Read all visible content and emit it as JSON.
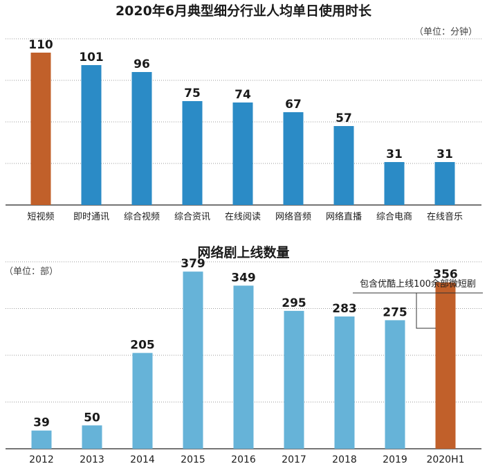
{
  "chart_data": [
    {
      "type": "bar",
      "title": "2020年6月典型细分行业人均单日使用时长",
      "unit_label": "（单位：分钟）",
      "categories": [
        "短视频",
        "即时通讯",
        "综合视频",
        "综合资讯",
        "在线阅读",
        "网络音频",
        "网络直播",
        "综合电商",
        "在线音乐"
      ],
      "values": [
        110,
        101,
        96,
        75,
        74,
        67,
        57,
        31,
        31
      ],
      "highlight_index": 0,
      "colors": {
        "bar": "#2b8bc6",
        "highlight": "#c1602a"
      },
      "ylim": [
        0,
        120
      ],
      "grid": true
    },
    {
      "type": "bar",
      "title": "网络剧上线数量",
      "unit_label": "（单位：部）",
      "categories": [
        "2012",
        "2013",
        "2014",
        "2015",
        "2016",
        "2017",
        "2018",
        "2019",
        "2020H1"
      ],
      "values": [
        39,
        50,
        205,
        379,
        349,
        295,
        283,
        275,
        356
      ],
      "highlight_index": 8,
      "colors": {
        "bar": "#66b3d8",
        "highlight": "#c1602a"
      },
      "ylim": [
        0,
        400
      ],
      "grid": true,
      "annotation": {
        "text": "包含优酷上线100余部微短剧",
        "target_index": 8
      }
    }
  ]
}
